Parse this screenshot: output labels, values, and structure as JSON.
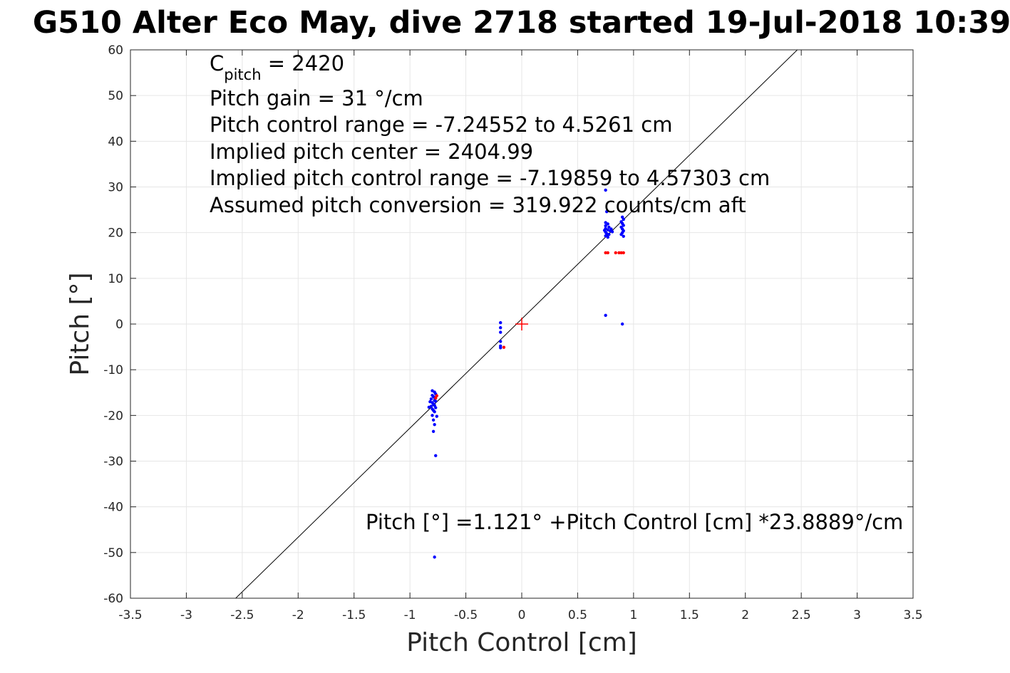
{
  "chart_data": {
    "type": "scatter",
    "title": "G510 Alter Eco May, dive 2718 started 19-Jul-2018 10:39",
    "xlabel": "Pitch Control [cm]",
    "ylabel": "Pitch [°]",
    "xlim": [
      -3.5,
      3.5
    ],
    "ylim": [
      -60,
      60
    ],
    "xticks": [
      -3.5,
      -3,
      -2.5,
      -2,
      -1.5,
      -1,
      -0.5,
      0,
      0.5,
      1,
      1.5,
      2,
      2.5,
      3,
      3.5
    ],
    "xtick_labels": [
      "-3.5",
      "-3",
      "-2.5",
      "-2",
      "-1.5",
      "-1",
      "-0.5",
      "0",
      "0.5",
      "1",
      "1.5",
      "2",
      "2.5",
      "3",
      "3.5"
    ],
    "yticks": [
      -60,
      -50,
      -40,
      -30,
      -20,
      -10,
      0,
      10,
      20,
      30,
      40,
      50,
      60
    ],
    "ytick_labels": [
      "-60",
      "-50",
      "-40",
      "-30",
      "-20",
      "-10",
      "0",
      "10",
      "20",
      "30",
      "40",
      "50",
      "60"
    ],
    "grid": true,
    "annotations": {
      "c_pitch_main": "C",
      "c_pitch_sub": "pitch",
      "c_pitch_value": " = 2420",
      "pitch_gain": "Pitch gain = 31 °/cm",
      "control_range": "Pitch control range = -7.24552 to 4.5261 cm",
      "implied_center": "Implied pitch center = 2404.99",
      "implied_range": "Implied pitch control range = -7.19859 to 4.57303 cm",
      "conversion": "Assumed pitch conversion = 319.922 counts/cm aft",
      "fit_equation": "Pitch [°] =1.121° +Pitch Control [cm] *23.8889°/cm"
    },
    "colors": {
      "series_blue": "#0000ff",
      "series_red": "#ff0000",
      "fit_line": "#000000",
      "center_marker": "#ff0000",
      "grid": "#e6e6e6"
    },
    "fit_line": {
      "intercept": 1.121,
      "slope": 23.8889
    },
    "center_marker": {
      "x": 0,
      "y": 0
    },
    "series": [
      {
        "color": "#0000ff",
        "points": [
          [
            -0.8,
            -14.6
          ],
          [
            -0.78,
            -14.9
          ],
          [
            -0.77,
            -15.3
          ],
          [
            -0.8,
            -15.6
          ],
          [
            -0.79,
            -15.9
          ],
          [
            -0.78,
            -16.1
          ],
          [
            -0.81,
            -16.4
          ],
          [
            -0.78,
            -16.7
          ],
          [
            -0.77,
            -16.9
          ],
          [
            -0.8,
            -17.2
          ],
          [
            -0.79,
            -17.5
          ],
          [
            -0.78,
            -17.8
          ],
          [
            -0.81,
            -18.0
          ],
          [
            -0.77,
            -18.3
          ],
          [
            -0.8,
            -18.6
          ],
          [
            -0.79,
            -18.9
          ],
          [
            -0.78,
            -19.2
          ],
          [
            -0.8,
            -20.0
          ],
          [
            -0.76,
            -20.2
          ],
          [
            -0.79,
            -21.0
          ],
          [
            -0.78,
            -22.0
          ],
          [
            -0.79,
            -23.5
          ],
          [
            -0.77,
            -28.8
          ],
          [
            -0.78,
            -51.0
          ],
          [
            -0.82,
            -17.0
          ],
          [
            -0.83,
            -18.2
          ],
          [
            -0.19,
            0.3
          ],
          [
            -0.19,
            -0.8
          ],
          [
            -0.19,
            -1.8
          ],
          [
            -0.19,
            -3.8
          ],
          [
            -0.19,
            -4.8
          ],
          [
            -0.19,
            -5.2
          ],
          [
            0.75,
            29.3
          ],
          [
            0.76,
            24.6
          ],
          [
            0.75,
            22.2
          ],
          [
            0.77,
            21.9
          ],
          [
            0.75,
            21.5
          ],
          [
            0.78,
            21.2
          ],
          [
            0.75,
            20.9
          ],
          [
            0.77,
            20.6
          ],
          [
            0.79,
            20.4
          ],
          [
            0.75,
            20.1
          ],
          [
            0.76,
            19.8
          ],
          [
            0.78,
            19.6
          ],
          [
            0.75,
            19.3
          ],
          [
            0.77,
            19.0
          ],
          [
            0.8,
            20.8
          ],
          [
            0.81,
            20.2
          ],
          [
            0.74,
            20.5
          ],
          [
            0.75,
            1.9
          ],
          [
            0.9,
            23.4
          ],
          [
            0.91,
            22.9
          ],
          [
            0.89,
            22.4
          ],
          [
            0.9,
            22.0
          ],
          [
            0.91,
            21.6
          ],
          [
            0.89,
            21.2
          ],
          [
            0.9,
            20.8
          ],
          [
            0.91,
            20.4
          ],
          [
            0.9,
            20.0
          ],
          [
            0.89,
            19.6
          ],
          [
            0.91,
            19.2
          ],
          [
            0.9,
            0.0
          ]
        ]
      },
      {
        "color": "#ff0000",
        "points": [
          [
            -0.76,
            -15.7
          ],
          [
            -0.77,
            -16.2
          ],
          [
            -0.16,
            -5.1
          ],
          [
            0.75,
            15.6
          ],
          [
            0.77,
            15.6
          ],
          [
            0.84,
            15.6
          ],
          [
            0.87,
            15.6
          ],
          [
            0.89,
            15.6
          ],
          [
            0.91,
            15.6
          ]
        ]
      }
    ]
  }
}
